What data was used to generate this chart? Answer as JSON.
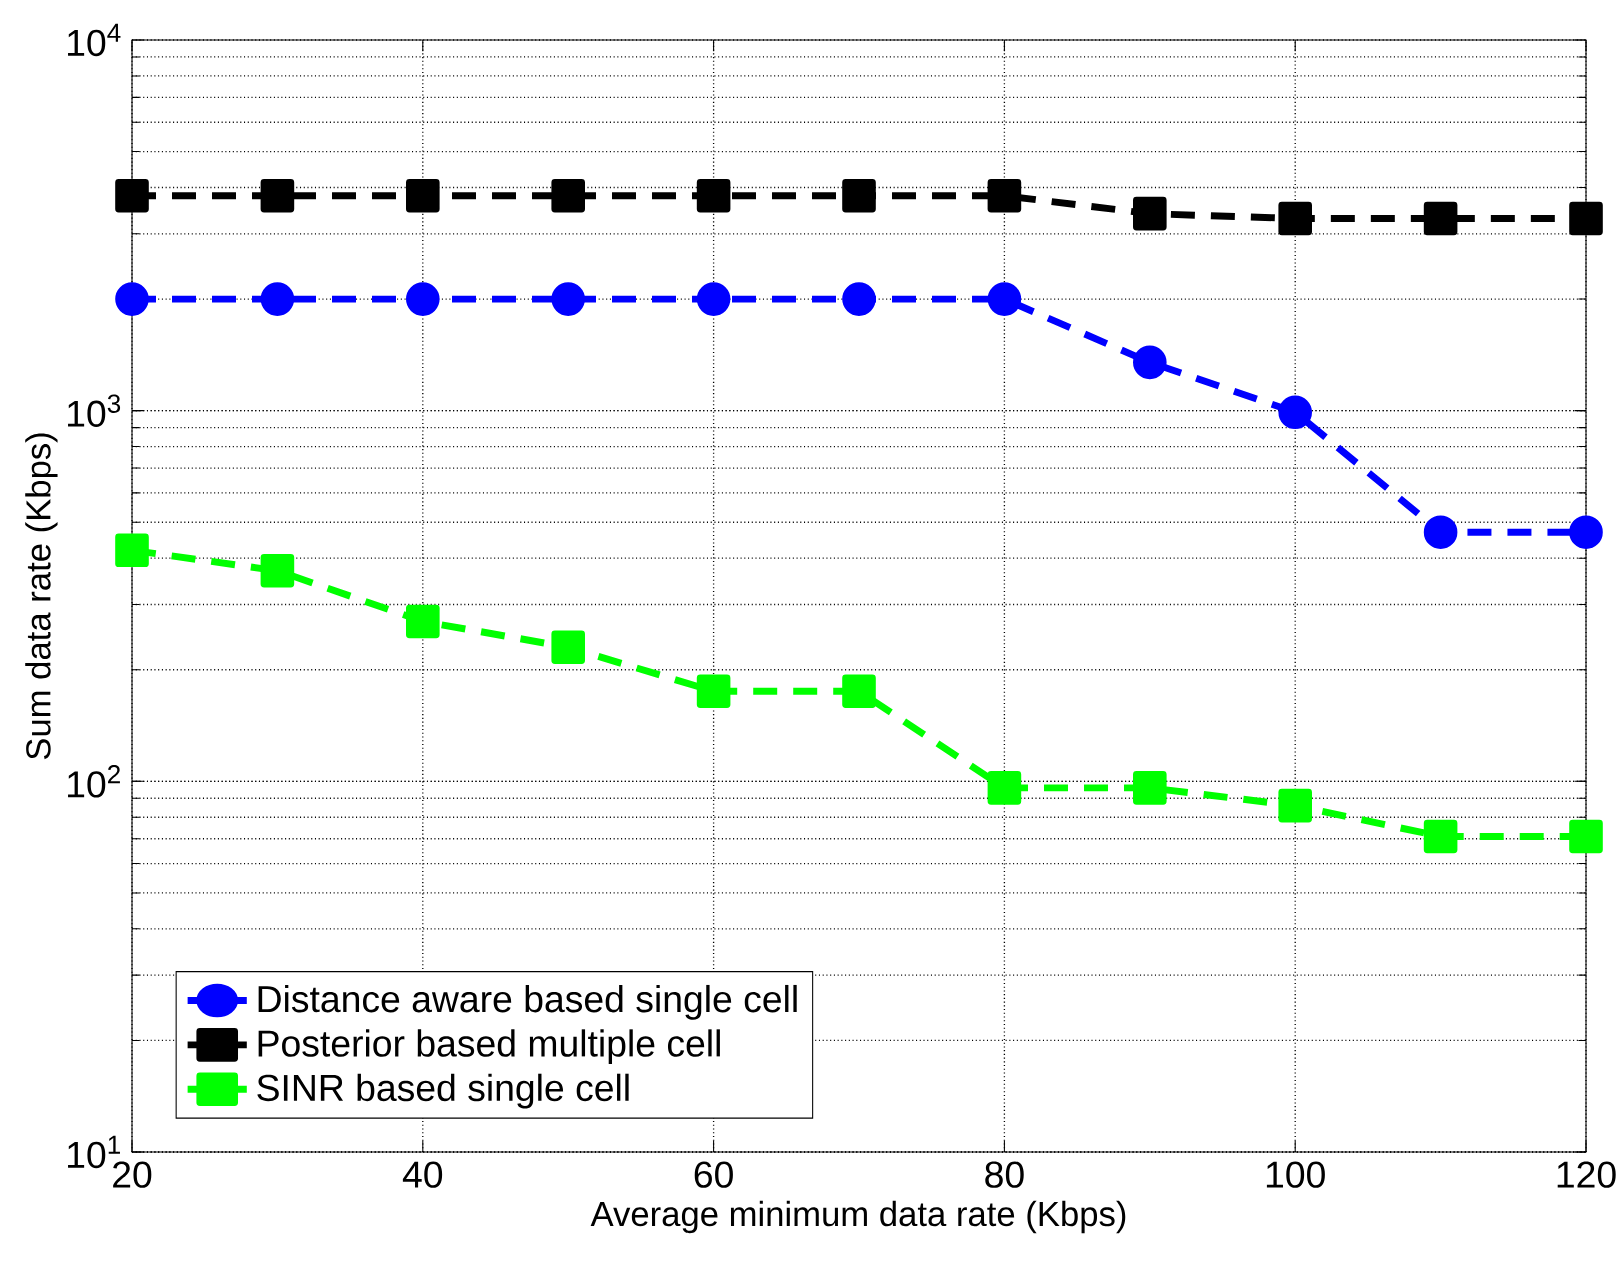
{
  "chart_data": {
    "type": "line",
    "xlabel": "Average minimum data rate (Kbps)",
    "ylabel": "Sum data rate (Kbps)",
    "x": [
      20,
      30,
      40,
      50,
      60,
      70,
      80,
      90,
      100,
      110,
      120
    ],
    "series": [
      {
        "name": "Distance aware based single cell",
        "color": "#0000ff",
        "marker": "circle",
        "values": [
          2000,
          2000,
          2000,
          2000,
          2000,
          2000,
          2000,
          1350,
          990,
          470,
          470
        ]
      },
      {
        "name": "Posterior based multiple cell",
        "color": "#000000",
        "marker": "square",
        "values": [
          3800,
          3800,
          3800,
          3800,
          3800,
          3800,
          3800,
          3400,
          3300,
          3300,
          3300
        ]
      },
      {
        "name": "SINR based single cell",
        "color": "#00ff00",
        "marker": "square",
        "values": [
          420,
          370,
          270,
          230,
          175,
          175,
          96,
          96,
          86,
          71,
          71
        ]
      }
    ],
    "log": "y",
    "xlim": [
      20,
      120
    ],
    "ylim": [
      10,
      10000
    ],
    "xticks": [
      20,
      40,
      60,
      80,
      100,
      120
    ],
    "yticks": [
      {
        "value": 10,
        "label": "10$^{1}$"
      },
      {
        "value": 100,
        "label": "10$^{2}$"
      },
      {
        "value": 1000,
        "label": "10$^{3}$"
      },
      {
        "value": 10000,
        "label": "10$^{4}$"
      }
    ],
    "grid": true,
    "legend": "bottom left",
    "line_style": "dashed"
  }
}
